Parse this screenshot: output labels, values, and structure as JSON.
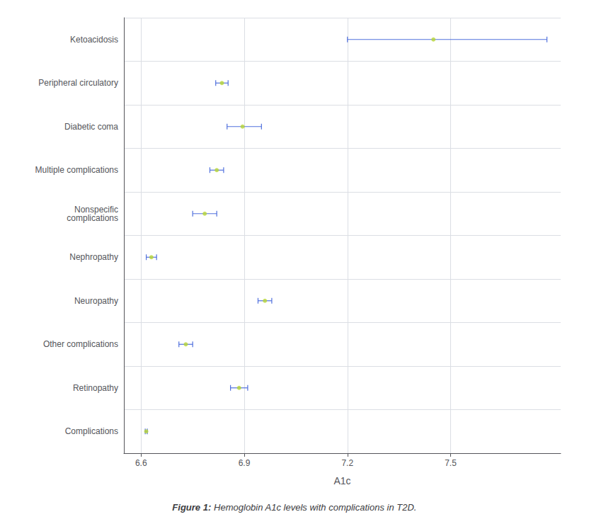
{
  "chart_data": {
    "type": "scatter",
    "title": "Figure 1: Hemoglobin A1c levels with complications in T2D.",
    "xlabel": "A1c",
    "categories": [
      "Complications",
      "Retinopathy",
      "Other complications",
      "Neuropathy",
      "Nephropathy",
      "Nonspecific\ncomplications",
      "Multiple complications",
      "Diabetic coma",
      "Peripheral circulatory",
      "Ketoacidosis"
    ],
    "values": [
      6.615,
      6.885,
      6.73,
      6.96,
      6.63,
      6.785,
      6.82,
      6.895,
      6.835,
      7.45
    ],
    "xerr_low": [
      0.003,
      0.025,
      0.02,
      0.02,
      0.015,
      0.035,
      0.02,
      0.045,
      0.018,
      0.25
    ],
    "xerr_high": [
      0.003,
      0.025,
      0.02,
      0.02,
      0.015,
      0.035,
      0.02,
      0.055,
      0.018,
      0.33
    ],
    "xlim": [
      6.55,
      7.82
    ],
    "xticks": [
      6.6,
      6.9,
      7.2,
      7.5
    ],
    "marker": "circle",
    "grid": true
  }
}
